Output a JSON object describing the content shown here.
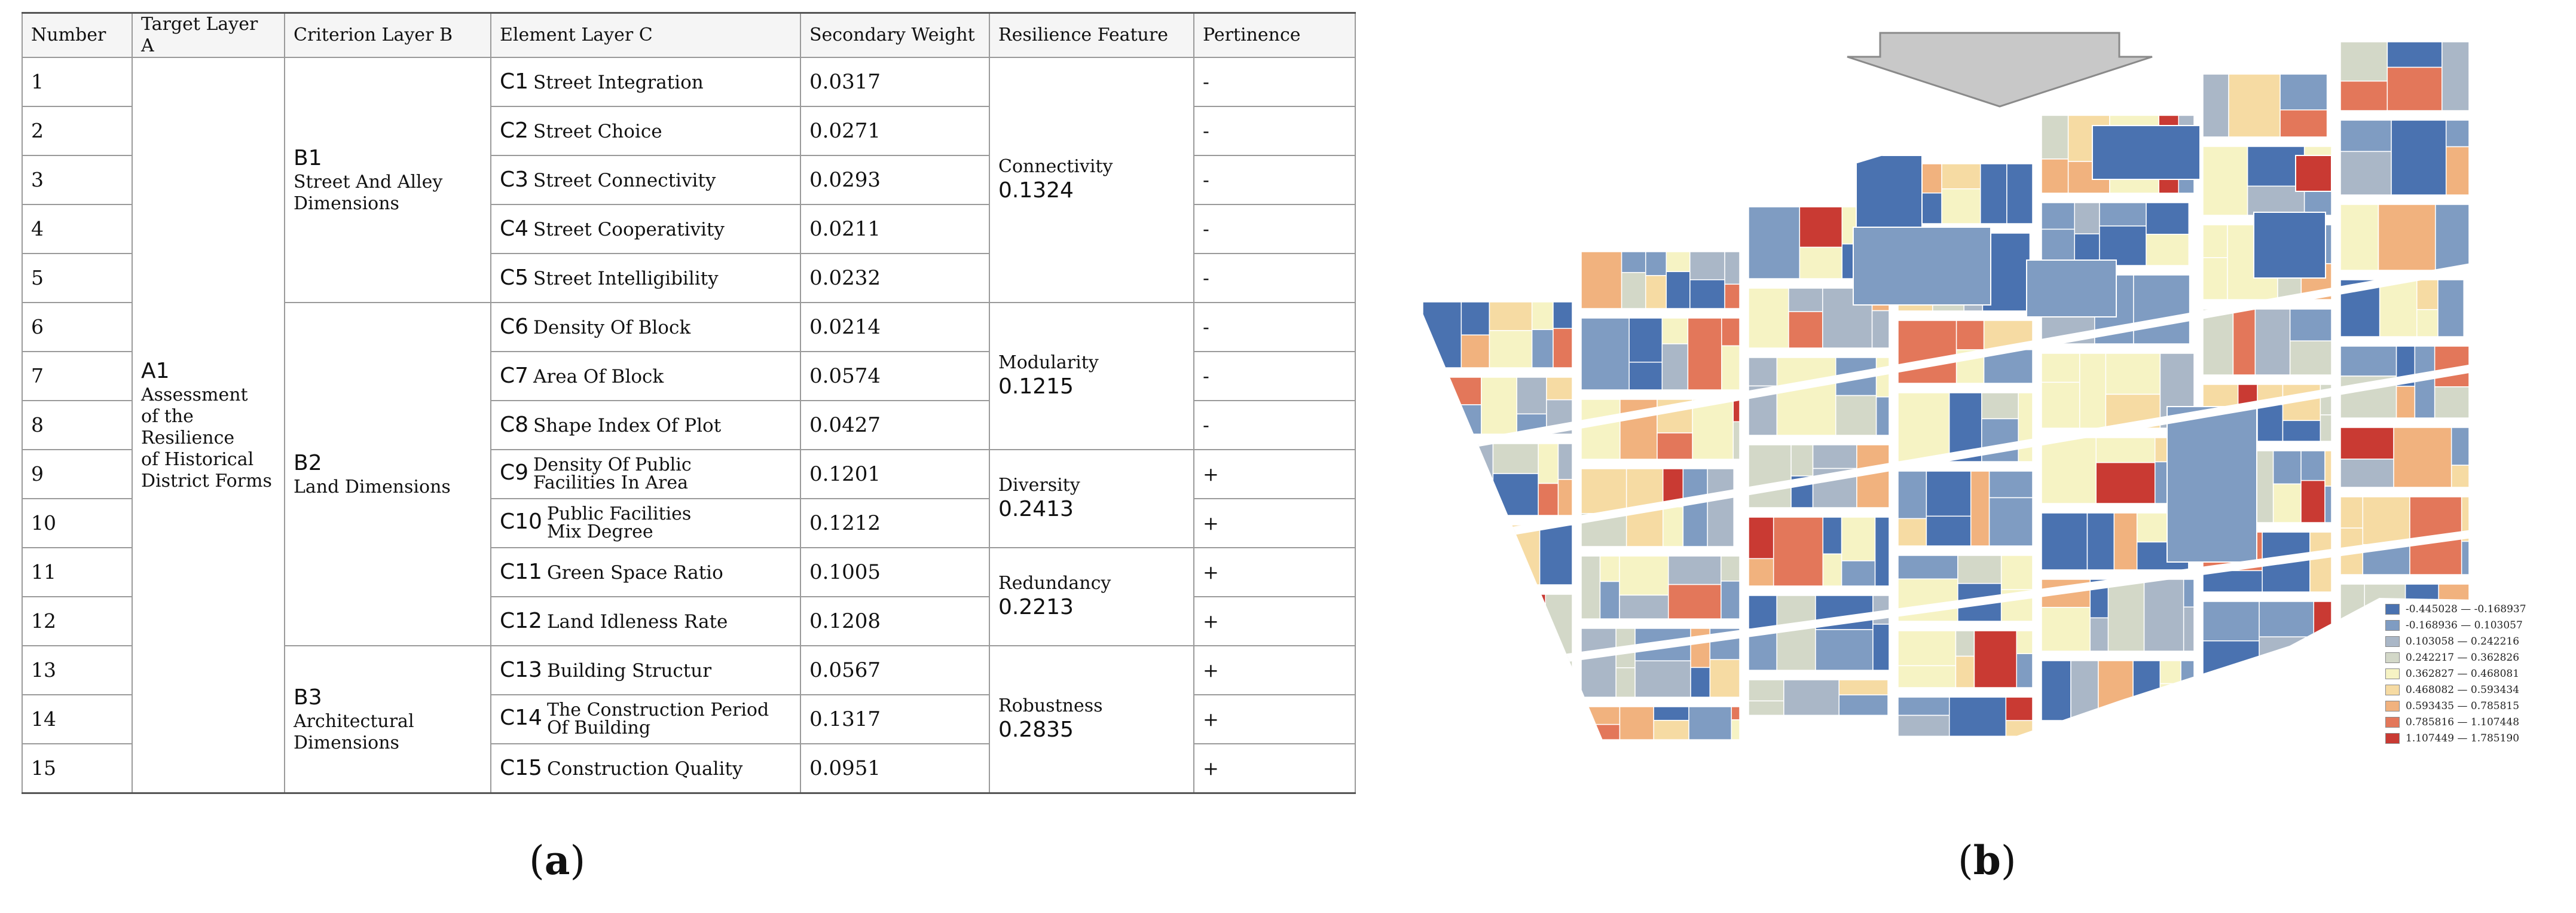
{
  "table": {
    "headers": [
      "Number",
      "Target Layer A",
      "Criterion Layer B",
      "Element Layer C",
      "Secondary Weight",
      "Resilience Feature",
      "Pertinence"
    ],
    "target": {
      "code": "A1",
      "name_lines": [
        "Assessment",
        "of the",
        "Resilience",
        "of Historical",
        "District Forms"
      ]
    },
    "criteria": [
      {
        "code": "B1",
        "name_lines": [
          "Street And Alley",
          "Dimensions"
        ]
      },
      {
        "code": "B2",
        "name_lines": [
          "Land Dimensions"
        ]
      },
      {
        "code": "B3",
        "name_lines": [
          "Architectural",
          "Dimensions"
        ]
      }
    ],
    "features": [
      {
        "name": "Connectivity",
        "value": "0.1324"
      },
      {
        "name": "Modularity",
        "value": "0.1215"
      },
      {
        "name": "Diversity",
        "value": "0.2413"
      },
      {
        "name": "Redundancy",
        "value": "0.2213"
      },
      {
        "name": "Robustness",
        "value": "0.2835"
      }
    ],
    "rows": [
      {
        "number": "1",
        "code": "C1",
        "name": "Street Integration",
        "weight": "0.0317",
        "pertinence": "-"
      },
      {
        "number": "2",
        "code": "C2",
        "name": "Street Choice",
        "weight": "0.0271",
        "pertinence": "-"
      },
      {
        "number": "3",
        "code": "C3",
        "name": "Street Connectivity",
        "weight": "0.0293",
        "pertinence": "-"
      },
      {
        "number": "4",
        "code": "C4",
        "name": "Street Cooperativity",
        "weight": "0.0211",
        "pertinence": "-"
      },
      {
        "number": "5",
        "code": "C5",
        "name": "Street Intelligibility",
        "weight": "0.0232",
        "pertinence": "-"
      },
      {
        "number": "6",
        "code": "C6",
        "name": "Density Of Block",
        "weight": "0.0214",
        "pertinence": "-"
      },
      {
        "number": "7",
        "code": "C7",
        "name": "Area Of Block",
        "weight": "0.0574",
        "pertinence": "-"
      },
      {
        "number": "8",
        "code": "C8",
        "name": "Shape Index Of Plot",
        "weight": "0.0427",
        "pertinence": "-"
      },
      {
        "number": "9",
        "code": "C9",
        "name_lines": [
          "Density Of Public",
          "Facilities In Area"
        ],
        "weight": "0.1201",
        "pertinence": "+"
      },
      {
        "number": "10",
        "code": "C10",
        "name_lines": [
          "Public Facilities",
          "Mix Degree"
        ],
        "weight": "0.1212",
        "pertinence": "+"
      },
      {
        "number": "11",
        "code": "C11",
        "name": "Green Space Ratio",
        "weight": "0.1005",
        "pertinence": "+"
      },
      {
        "number": "12",
        "code": "C12",
        "name": "Land Idleness Rate",
        "weight": "0.1208",
        "pertinence": "+"
      },
      {
        "number": "13",
        "code": "C13",
        "name": "Building Structur",
        "weight": "0.0567",
        "pertinence": "+"
      },
      {
        "number": "14",
        "code": "C14",
        "name_lines": [
          "The Construction Period",
          "Of Building"
        ],
        "weight": "0.1317",
        "pertinence": "+"
      },
      {
        "number": "15",
        "code": "C15",
        "name": "Construction Quality",
        "weight": "0.0951",
        "pertinence": "+"
      }
    ]
  },
  "captions": {
    "a": "a",
    "b": "b"
  },
  "legend": {
    "items": [
      {
        "label": "-0.445028 — -0.168937",
        "color": "#4a72b0"
      },
      {
        "label": "-0.168936 — 0.103057",
        "color": "#7f9cc2"
      },
      {
        "label": "0.103058 — 0.242216",
        "color": "#aab7c7"
      },
      {
        "label": "0.242217 — 0.362826",
        "color": "#d3d8c8"
      },
      {
        "label": "0.362827 — 0.468081",
        "color": "#f6f3c4"
      },
      {
        "label": "0.468082 — 0.593434",
        "color": "#f6dba3"
      },
      {
        "label": "0.593435 — 0.785815",
        "color": "#f1b27e"
      },
      {
        "label": "0.785816 — 1.107448",
        "color": "#e3775a"
      },
      {
        "label": "1.107449 — 1.785190",
        "color": "#c93a33"
      }
    ]
  },
  "map": {
    "arrow_color": "#c8c8c8",
    "street_color": "#ffffff"
  }
}
